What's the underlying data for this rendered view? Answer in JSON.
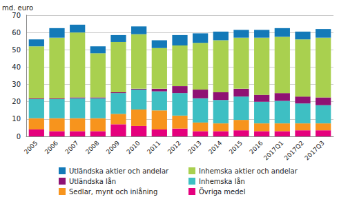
{
  "chart_data": {
    "type": "bar",
    "stacked": true,
    "grid": true,
    "y_label": "md. euro",
    "categories": [
      "2005",
      "2006",
      "2007",
      "2008",
      "2009",
      "2010",
      "2011",
      "2012",
      "2013",
      "2014",
      "2015",
      "2016",
      "2017Q1",
      "2017Q2",
      "2017Q3"
    ],
    "ylim": [
      0,
      70
    ],
    "yticks": [
      0,
      10,
      20,
      30,
      40,
      50,
      60,
      70
    ],
    "series": [
      {
        "name": "Övriga medel",
        "color": "#e5007d",
        "values": [
          4,
          3,
          3,
          3,
          7,
          6,
          4,
          4.5,
          3,
          3,
          3.5,
          3,
          3,
          3.5,
          3.5
        ]
      },
      {
        "name": "Sedlar, mynt och inlåning",
        "color": "#f7941d",
        "values": [
          6.5,
          7.5,
          7.5,
          7.5,
          6,
          9.5,
          11,
          7.5,
          5,
          4.5,
          6,
          4.5,
          4.5,
          4,
          4
        ]
      },
      {
        "name": "Inhemska lån",
        "color": "#3ebfc3",
        "values": [
          11,
          11,
          11.5,
          11.5,
          12,
          11.5,
          11,
          13,
          14,
          13.5,
          13.5,
          12.5,
          13,
          11.5,
          10.5
        ]
      },
      {
        "name": "Utländska lån",
        "color": "#8f1273",
        "values": [
          0.5,
          0.5,
          0.5,
          0.5,
          0.5,
          0.5,
          1.5,
          4,
          5,
          4.5,
          4.5,
          4,
          4.5,
          4,
          4.5
        ]
      },
      {
        "name": "Inhemska aktier och andelar",
        "color": "#a9d04f",
        "values": [
          30,
          35,
          37.5,
          25.5,
          29,
          31.5,
          23.5,
          23.5,
          27,
          30,
          29.5,
          33,
          32.5,
          33,
          34.5
        ]
      },
      {
        "name": "Utländska aktier och andelar",
        "color": "#1379b8",
        "values": [
          4,
          5.5,
          4.5,
          4,
          4,
          4.5,
          4.5,
          6,
          5.5,
          5,
          4.5,
          4.5,
          5,
          4.5,
          5
        ]
      }
    ]
  }
}
